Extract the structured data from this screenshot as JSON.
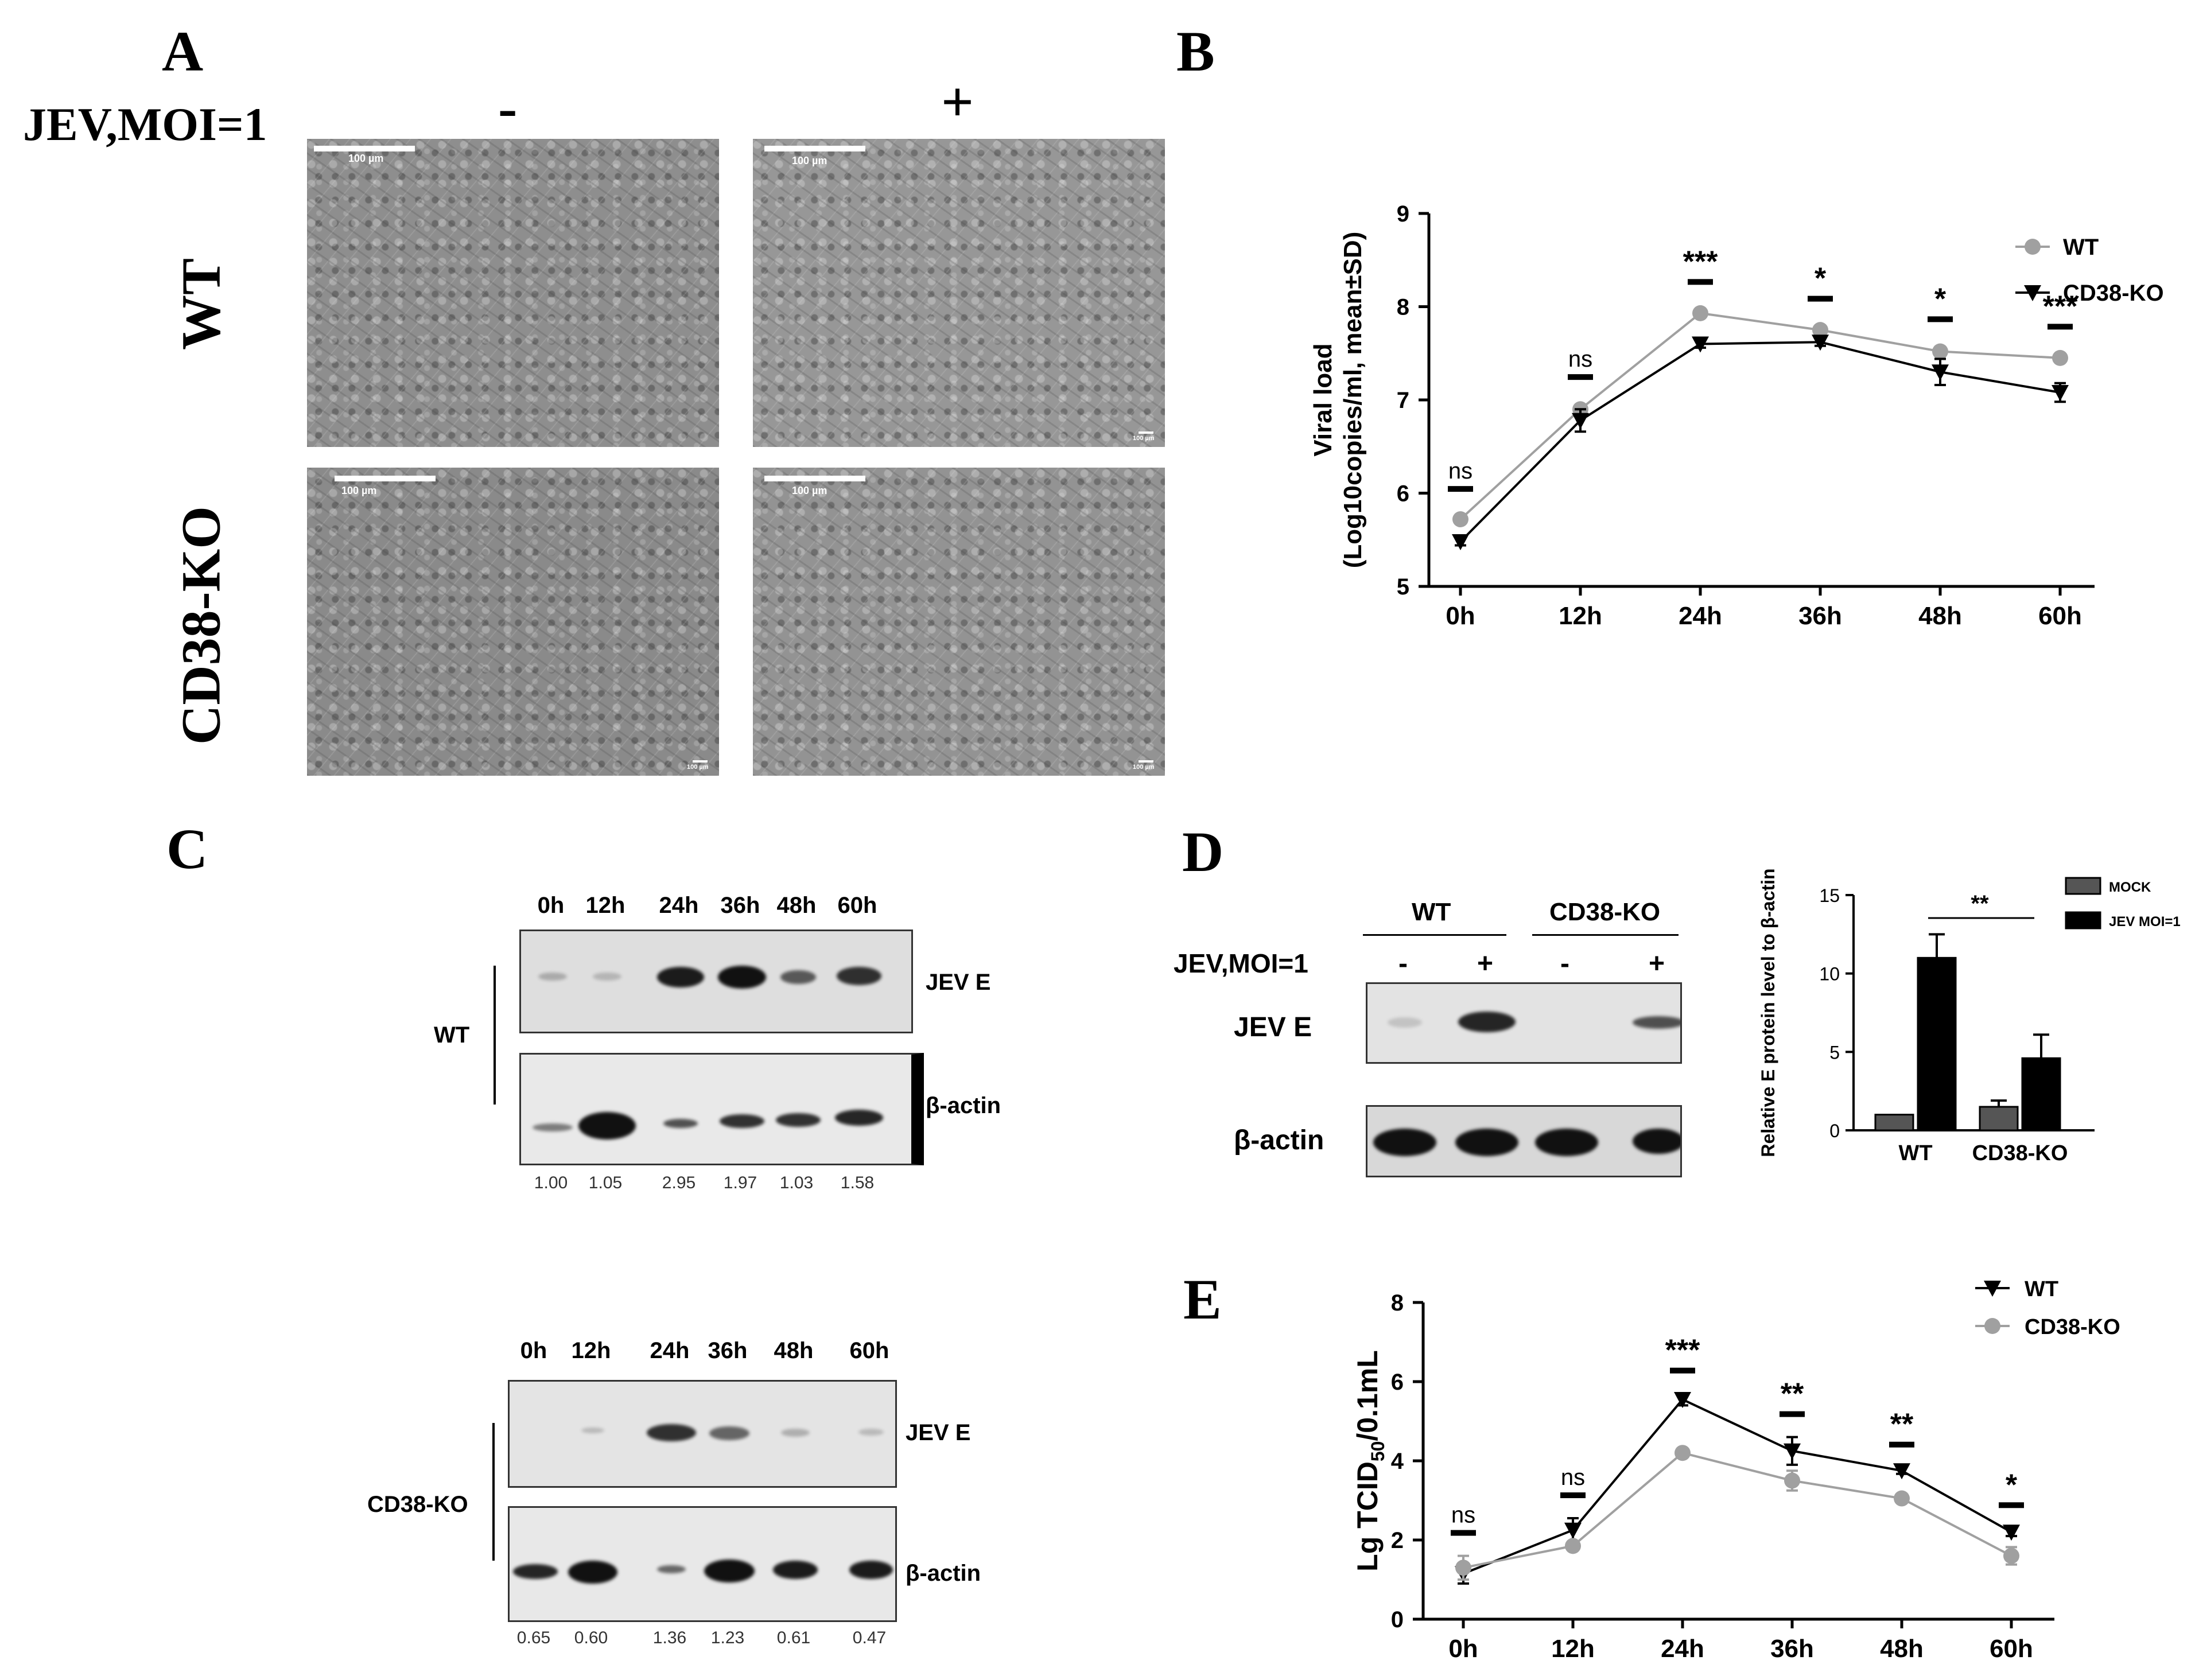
{
  "panel_labels": {
    "a": "A",
    "b": "B",
    "c": "C",
    "d": "D",
    "e": "E"
  },
  "panel_a": {
    "condition_label": "JEV,MOI=1",
    "col_minus": "-",
    "col_plus": "+",
    "row_wt": "WT",
    "row_ko": "CD38-KO",
    "scale_big": "100 µm",
    "scale_small": "100 µm"
  },
  "panel_c": {
    "times": [
      "0h",
      "12h",
      "24h",
      "36h",
      "48h",
      "60h"
    ],
    "wt_label": "WT",
    "ko_label": "CD38-KO",
    "band_jev": "JEV E",
    "band_actin": "β-actin",
    "wt_quant": [
      "1.00",
      "1.05",
      "2.95",
      "1.97",
      "1.03",
      "1.58"
    ],
    "ko_quant": [
      "0.65",
      "0.60",
      "1.36",
      "1.23",
      "0.61",
      "0.47"
    ]
  },
  "panel_d": {
    "wt_label": "WT",
    "ko_label": "CD38-KO",
    "condition_label": "JEV,MOI=1",
    "signs": [
      "-",
      "+",
      "-",
      "+"
    ],
    "band_jev": "JEV E",
    "band_actin": "β-actin"
  },
  "chart_data": [
    {
      "id": "B",
      "type": "line",
      "categories": [
        "0h",
        "12h",
        "24h",
        "36h",
        "48h",
        "60h"
      ],
      "series": [
        {
          "name": "WT",
          "values": [
            5.72,
            6.9,
            7.93,
            7.75,
            7.52,
            7.45
          ],
          "err": [
            0.03,
            0.05,
            0.04,
            0.04,
            0.05,
            0.04
          ],
          "color": "#a0a0a0",
          "marker": "circle"
        },
        {
          "name": "CD38-KO",
          "values": [
            5.48,
            6.78,
            7.6,
            7.62,
            7.3,
            7.08
          ],
          "err": [
            0.04,
            0.12,
            0.04,
            0.04,
            0.14,
            0.1
          ],
          "color": "#000000",
          "marker": "triangle-down"
        }
      ],
      "significance": [
        "ns",
        "ns",
        "***",
        "*",
        "*",
        "***"
      ],
      "ylabel": [
        "Viral load",
        "(Log10copies/ml, mean±SD)"
      ],
      "ylim": [
        5,
        9
      ],
      "yticks": [
        "5",
        "6",
        "7",
        "8",
        "9"
      ]
    },
    {
      "id": "D",
      "type": "bar",
      "categories": [
        "WT",
        "CD38-KO"
      ],
      "series": [
        {
          "name": "MOCK",
          "values": [
            1.0,
            1.5
          ],
          "err": [
            0,
            0.4
          ],
          "color": "#555555"
        },
        {
          "name": "JEV MOI=1",
          "values": [
            11.0,
            4.6
          ],
          "err": [
            1.5,
            1.5
          ],
          "color": "#000000"
        }
      ],
      "significance": "**",
      "ylabel": "Relative E protein level to β-actin",
      "ylim": [
        0,
        15
      ],
      "yticks": [
        "0",
        "5",
        "10",
        "15"
      ]
    },
    {
      "id": "E",
      "type": "line",
      "categories": [
        "0h",
        "12h",
        "24h",
        "36h",
        "48h",
        "60h"
      ],
      "series": [
        {
          "name": "WT",
          "values": [
            1.15,
            2.25,
            5.55,
            4.25,
            3.75,
            2.2
          ],
          "err": [
            0.25,
            0.3,
            0.15,
            0.35,
            0.08,
            0.1
          ],
          "color": "#000000",
          "marker": "triangle-down"
        },
        {
          "name": "CD38-KO",
          "values": [
            1.3,
            1.85,
            4.2,
            3.5,
            3.05,
            1.6
          ],
          "err": [
            0.3,
            0.1,
            0.08,
            0.25,
            0.08,
            0.22
          ],
          "color": "#a0a0a0",
          "marker": "circle"
        }
      ],
      "significance": [
        "ns",
        "ns",
        "***",
        "**",
        "**",
        "*"
      ],
      "ylabel_main": "Lg TCID",
      "ylabel_sub": "50",
      "ylabel_tail": "/0.1mL",
      "ylim": [
        0,
        8
      ],
      "yticks": [
        "0",
        "2",
        "4",
        "6",
        "8"
      ]
    }
  ]
}
